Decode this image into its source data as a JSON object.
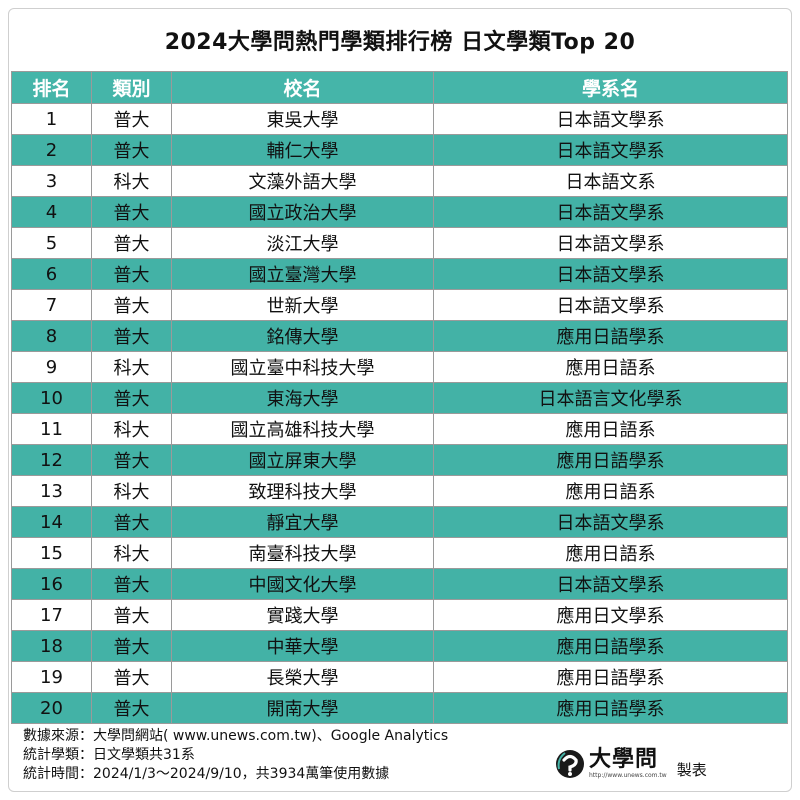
{
  "title": "2024大學問熱門學類排行榜 日文學類Top 20",
  "headers": [
    "排名",
    "類別",
    "校名",
    "學系名"
  ],
  "rows": [
    [
      "1",
      "普大",
      "東吳大學",
      "日本語文學系"
    ],
    [
      "2",
      "普大",
      "輔仁大學",
      "日本語文學系"
    ],
    [
      "3",
      "科大",
      "文藻外語大學",
      "日本語文系"
    ],
    [
      "4",
      "普大",
      "國立政治大學",
      "日本語文學系"
    ],
    [
      "5",
      "普大",
      "淡江大學",
      "日本語文學系"
    ],
    [
      "6",
      "普大",
      "國立臺灣大學",
      "日本語文學系"
    ],
    [
      "7",
      "普大",
      "世新大學",
      "日本語文學系"
    ],
    [
      "8",
      "普大",
      "銘傳大學",
      "應用日語學系"
    ],
    [
      "9",
      "科大",
      "國立臺中科技大學",
      "應用日語系"
    ],
    [
      "10",
      "普大",
      "東海大學",
      "日本語言文化學系"
    ],
    [
      "11",
      "科大",
      "國立高雄科技大學",
      "應用日語系"
    ],
    [
      "12",
      "普大",
      "國立屏東大學",
      "應用日語學系"
    ],
    [
      "13",
      "科大",
      "致理科技大學",
      "應用日語系"
    ],
    [
      "14",
      "普大",
      "靜宜大學",
      "日本語文學系"
    ],
    [
      "15",
      "科大",
      "南臺科技大學",
      "應用日語系"
    ],
    [
      "16",
      "普大",
      "中國文化大學",
      "日本語文學系"
    ],
    [
      "17",
      "普大",
      "實踐大學",
      "應用日文學系"
    ],
    [
      "18",
      "普大",
      "中華大學",
      "應用日語學系"
    ],
    [
      "19",
      "普大",
      "長榮大學",
      "應用日語學系"
    ],
    [
      "20",
      "普大",
      "開南大學",
      "應用日語學系"
    ]
  ],
  "footer": {
    "source": "數據來源：大學問網站( www.unews.com.tw)、Google Analytics",
    "category": "統計學類：日文學類共31系",
    "period": "統計時間：2024/1/3～2024/9/10，共3934萬筆使用數據"
  },
  "brand": {
    "name": "大學問",
    "url": "http://www.unews.com.tw",
    "made_by": "製表"
  },
  "colors": {
    "header_bg": "#45b5a9",
    "alt_row_bg": "#43b2a6",
    "text": "#111111"
  },
  "icons": {
    "logo": "unews-logo-icon"
  }
}
